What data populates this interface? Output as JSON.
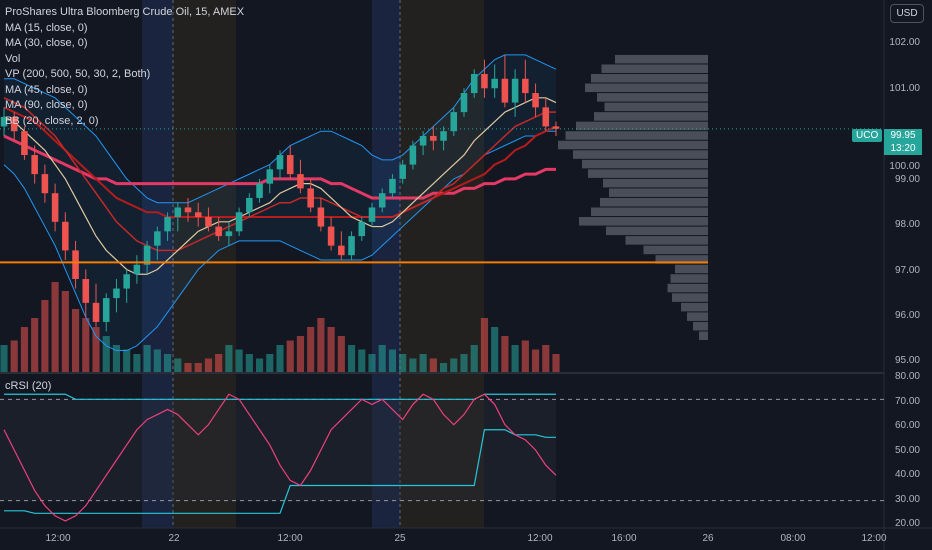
{
  "legend": {
    "title": "ProShares Ultra Bloomberg Crude Oil, 15, AMEX",
    "indicators": [
      "MA (15, close, 0)",
      "MA (30, close, 0)",
      "Vol",
      "VP (200, 500, 50, 30, 2, Both)",
      "MA (45, close, 0)",
      "MA (90, close, 0)",
      "BB (20, close, 2, 0)"
    ]
  },
  "rsi_legend": "cRSI (20)",
  "currency": "USD",
  "price_tag": {
    "symbol": "UCO",
    "price": "99.95",
    "countdown": "13:20"
  },
  "price_axis": [
    "102.00",
    "101.00",
    "100.00",
    "99.00",
    "98.00",
    "97.00",
    "96.00",
    "95.00"
  ],
  "rsi_axis": [
    "80.00",
    "70.00",
    "60.00",
    "50.00",
    "40.00",
    "30.00",
    "20.00"
  ],
  "time_axis": [
    "12:00",
    "22",
    "12:00",
    "25",
    "12:00",
    "16:00",
    "26",
    "08:00",
    "12:00"
  ],
  "colors": {
    "up": "#26a69a",
    "down": "#ef5350",
    "ma15": "#e0c9a0",
    "ma30": "#c62828",
    "ma45": "#b71c1c",
    "ma90": "#e53965",
    "bb": "#2196f3",
    "vp": "#787b86",
    "hline": "#f57c00",
    "rsi": "#ec407a",
    "rsi_band": "#26c6da"
  },
  "chart_data": {
    "type": "candlestick",
    "ylim": [
      94.85,
      102.4
    ],
    "rsi_ylim": [
      20,
      80
    ],
    "rsi_levels": [
      30,
      70
    ],
    "horizontal_line": 97.15,
    "last_price": 99.95,
    "candles": [
      [
        100.0,
        100.4,
        99.8,
        100.2
      ],
      [
        100.2,
        100.3,
        99.7,
        99.9
      ],
      [
        99.9,
        100.0,
        99.3,
        99.4
      ],
      [
        99.4,
        99.6,
        98.8,
        99.0
      ],
      [
        99.0,
        99.2,
        98.4,
        98.6
      ],
      [
        98.6,
        98.8,
        97.8,
        98.0
      ],
      [
        98.0,
        98.2,
        97.2,
        97.4
      ],
      [
        97.4,
        97.6,
        96.6,
        96.8
      ],
      [
        96.8,
        97.0,
        96.0,
        96.3
      ],
      [
        96.3,
        96.7,
        95.8,
        95.9
      ],
      [
        95.9,
        96.5,
        95.7,
        96.4
      ],
      [
        96.4,
        96.8,
        96.1,
        96.6
      ],
      [
        96.6,
        97.0,
        96.3,
        96.9
      ],
      [
        96.9,
        97.3,
        96.7,
        97.1
      ],
      [
        97.1,
        97.6,
        96.9,
        97.5
      ],
      [
        97.5,
        97.9,
        97.2,
        97.8
      ],
      [
        97.8,
        98.2,
        97.6,
        98.1
      ],
      [
        98.1,
        98.4,
        97.8,
        98.3
      ],
      [
        98.3,
        98.5,
        98.0,
        98.2
      ],
      [
        98.2,
        98.4,
        97.9,
        98.1
      ],
      [
        98.1,
        98.3,
        97.8,
        97.9
      ],
      [
        97.9,
        98.1,
        97.6,
        97.7
      ],
      [
        97.7,
        98.0,
        97.5,
        97.8
      ],
      [
        97.8,
        98.3,
        97.7,
        98.2
      ],
      [
        98.2,
        98.6,
        98.1,
        98.5
      ],
      [
        98.5,
        98.9,
        98.4,
        98.8
      ],
      [
        98.8,
        99.2,
        98.6,
        99.1
      ],
      [
        99.1,
        99.5,
        98.9,
        99.4
      ],
      [
        99.4,
        99.6,
        98.9,
        99.0
      ],
      [
        99.0,
        99.3,
        98.6,
        98.7
      ],
      [
        98.7,
        98.9,
        98.2,
        98.3
      ],
      [
        98.3,
        98.5,
        97.8,
        97.9
      ],
      [
        97.9,
        98.1,
        97.4,
        97.5
      ],
      [
        97.5,
        97.8,
        97.2,
        97.3
      ],
      [
        97.3,
        97.8,
        97.2,
        97.7
      ],
      [
        97.7,
        98.1,
        97.6,
        98.0
      ],
      [
        98.0,
        98.4,
        97.9,
        98.3
      ],
      [
        98.3,
        98.7,
        98.2,
        98.6
      ],
      [
        98.6,
        99.0,
        98.5,
        98.9
      ],
      [
        98.9,
        99.3,
        98.8,
        99.2
      ],
      [
        99.2,
        99.7,
        99.1,
        99.6
      ],
      [
        99.6,
        99.9,
        99.4,
        99.8
      ],
      [
        99.8,
        100.0,
        99.5,
        99.7
      ],
      [
        99.7,
        100.0,
        99.5,
        99.9
      ],
      [
        99.9,
        100.4,
        99.8,
        100.3
      ],
      [
        100.3,
        100.8,
        100.2,
        100.7
      ],
      [
        100.7,
        101.2,
        100.6,
        101.1
      ],
      [
        101.1,
        101.4,
        100.6,
        100.8
      ],
      [
        100.8,
        101.3,
        100.6,
        101.0
      ],
      [
        101.0,
        101.5,
        100.4,
        100.5
      ],
      [
        100.5,
        101.2,
        100.2,
        101.0
      ],
      [
        101.0,
        101.4,
        100.5,
        100.7
      ],
      [
        100.7,
        100.9,
        100.2,
        100.4
      ],
      [
        100.4,
        100.6,
        99.9,
        100.0
      ],
      [
        100.0,
        100.1,
        99.8,
        99.95
      ]
    ],
    "volume": [
      0.3,
      0.35,
      0.5,
      0.6,
      0.8,
      1.0,
      0.9,
      0.7,
      0.6,
      0.5,
      0.4,
      0.3,
      0.25,
      0.2,
      0.3,
      0.25,
      0.2,
      0.15,
      0.1,
      0.1,
      0.15,
      0.2,
      0.3,
      0.25,
      0.2,
      0.15,
      0.2,
      0.3,
      0.35,
      0.4,
      0.5,
      0.6,
      0.5,
      0.4,
      0.3,
      0.25,
      0.2,
      0.3,
      0.25,
      0.2,
      0.15,
      0.2,
      0.15,
      0.1,
      0.15,
      0.2,
      0.3,
      0.6,
      0.5,
      0.4,
      0.3,
      0.35,
      0.25,
      0.3,
      0.2
    ],
    "ma15": [
      100.2,
      100.1,
      99.9,
      99.7,
      99.5,
      99.2,
      98.9,
      98.5,
      98.1,
      97.7,
      97.4,
      97.2,
      97.0,
      96.9,
      96.9,
      97.0,
      97.2,
      97.4,
      97.6,
      97.8,
      97.9,
      98.0,
      98.0,
      98.1,
      98.2,
      98.3,
      98.4,
      98.6,
      98.7,
      98.8,
      98.8,
      98.7,
      98.5,
      98.3,
      98.1,
      98.0,
      97.9,
      97.9,
      98.0,
      98.2,
      98.4,
      98.6,
      98.8,
      99.0,
      99.2,
      99.4,
      99.7,
      99.9,
      100.1,
      100.3,
      100.4,
      100.5,
      100.6,
      100.6,
      100.5
    ],
    "ma30": [
      100.6,
      100.5,
      100.4,
      100.2,
      100.0,
      99.8,
      99.5,
      99.2,
      98.9,
      98.6,
      98.3,
      98.0,
      97.8,
      97.6,
      97.5,
      97.4,
      97.4,
      97.4,
      97.5,
      97.6,
      97.7,
      97.8,
      97.9,
      98.0,
      98.1,
      98.2,
      98.3,
      98.4,
      98.4,
      98.5,
      98.5,
      98.5,
      98.4,
      98.3,
      98.2,
      98.1,
      98.1,
      98.1,
      98.1,
      98.2,
      98.3,
      98.4,
      98.5,
      98.7,
      98.8,
      99.0,
      99.2,
      99.4,
      99.6,
      99.8,
      100.0,
      100.1,
      100.2,
      100.3,
      100.3
    ],
    "ma45": [
      100.4,
      100.3,
      100.2,
      100.1,
      99.9,
      99.7,
      99.5,
      99.3,
      99.1,
      98.9,
      98.7,
      98.5,
      98.4,
      98.3,
      98.2,
      98.2,
      98.1,
      98.1,
      98.1,
      98.1,
      98.1,
      98.1,
      98.1,
      98.1,
      98.1,
      98.1,
      98.1,
      98.1,
      98.1,
      98.1,
      98.1,
      98.1,
      98.1,
      98.1,
      98.1,
      98.1,
      98.1,
      98.1,
      98.1,
      98.2,
      98.3,
      98.4,
      98.5,
      98.6,
      98.7,
      98.8,
      98.9,
      99.0,
      99.2,
      99.3,
      99.5,
      99.6,
      99.8,
      99.9,
      100.0
    ],
    "ma90": [
      99.8,
      99.7,
      99.6,
      99.5,
      99.4,
      99.3,
      99.2,
      99.1,
      99.0,
      98.9,
      98.9,
      98.8,
      98.8,
      98.8,
      98.8,
      98.8,
      98.8,
      98.8,
      98.8,
      98.8,
      98.8,
      98.8,
      98.8,
      98.8,
      98.8,
      98.8,
      98.9,
      98.9,
      98.9,
      98.9,
      98.9,
      98.9,
      98.8,
      98.8,
      98.7,
      98.6,
      98.5,
      98.5,
      98.5,
      98.5,
      98.5,
      98.5,
      98.6,
      98.6,
      98.6,
      98.7,
      98.7,
      98.8,
      98.8,
      98.9,
      98.9,
      99.0,
      99.0,
      99.1,
      99.1
    ],
    "bb_upper": [
      101.0,
      101.0,
      100.9,
      100.8,
      100.7,
      100.6,
      100.4,
      100.2,
      100.0,
      99.8,
      99.5,
      99.2,
      98.9,
      98.7,
      98.5,
      98.4,
      98.4,
      98.4,
      98.4,
      98.5,
      98.6,
      98.7,
      98.8,
      98.9,
      99.0,
      99.1,
      99.2,
      99.4,
      99.6,
      99.7,
      99.8,
      99.9,
      99.9,
      99.8,
      99.7,
      99.6,
      99.4,
      99.3,
      99.3,
      99.4,
      99.6,
      99.8,
      100.0,
      100.2,
      100.4,
      100.7,
      101.0,
      101.2,
      101.4,
      101.5,
      101.5,
      101.5,
      101.4,
      101.3,
      101.2
    ],
    "bb_lower": [
      99.2,
      99.0,
      98.7,
      98.3,
      97.9,
      97.5,
      97.0,
      96.5,
      96.0,
      95.6,
      95.4,
      95.3,
      95.3,
      95.4,
      95.6,
      95.8,
      96.1,
      96.4,
      96.7,
      97.0,
      97.2,
      97.4,
      97.5,
      97.6,
      97.6,
      97.6,
      97.6,
      97.6,
      97.5,
      97.4,
      97.3,
      97.2,
      97.2,
      97.2,
      97.2,
      97.2,
      97.3,
      97.5,
      97.7,
      97.9,
      98.1,
      98.3,
      98.5,
      98.7,
      98.9,
      99.0,
      99.2,
      99.4,
      99.5,
      99.6,
      99.7,
      99.8,
      99.8,
      99.9,
      99.9
    ],
    "volume_profile": [
      [
        101.4,
        0.62
      ],
      [
        101.2,
        0.71
      ],
      [
        101.0,
        0.78
      ],
      [
        100.8,
        0.82
      ],
      [
        100.6,
        0.74
      ],
      [
        100.4,
        0.69
      ],
      [
        100.2,
        0.76
      ],
      [
        100.0,
        0.88
      ],
      [
        99.8,
        0.95
      ],
      [
        99.6,
        1.0
      ],
      [
        99.4,
        0.9
      ],
      [
        99.2,
        0.84
      ],
      [
        99.0,
        0.8
      ],
      [
        98.8,
        0.7
      ],
      [
        98.6,
        0.66
      ],
      [
        98.4,
        0.72
      ],
      [
        98.2,
        0.78
      ],
      [
        98.0,
        0.86
      ],
      [
        97.8,
        0.68
      ],
      [
        97.6,
        0.55
      ],
      [
        97.4,
        0.43
      ],
      [
        97.2,
        0.35
      ],
      [
        97.0,
        0.22
      ],
      [
        96.8,
        0.25
      ],
      [
        96.6,
        0.27
      ],
      [
        96.4,
        0.24
      ],
      [
        96.2,
        0.18
      ],
      [
        96.0,
        0.14
      ],
      [
        95.8,
        0.1
      ],
      [
        95.6,
        0.06
      ]
    ],
    "crsi": [
      58,
      50,
      42,
      34,
      28,
      24,
      22,
      24,
      28,
      34,
      40,
      46,
      52,
      58,
      62,
      64,
      66,
      64,
      60,
      56,
      60,
      66,
      72,
      70,
      64,
      58,
      52,
      44,
      38,
      36,
      42,
      50,
      58,
      62,
      66,
      70,
      68,
      70,
      66,
      62,
      68,
      72,
      70,
      64,
      60,
      64,
      70,
      72,
      68,
      60,
      56,
      54,
      50,
      44,
      40
    ],
    "crsi_upper": [
      72,
      72,
      72,
      72,
      72,
      72,
      72,
      70,
      70,
      70,
      70,
      70,
      70,
      70,
      70,
      70,
      70,
      70,
      70,
      70,
      70,
      70,
      70,
      70,
      70,
      70,
      70,
      70,
      70,
      70,
      70,
      70,
      70,
      70,
      70,
      70,
      70,
      70,
      70,
      70,
      70,
      70,
      70,
      70,
      70,
      70,
      70,
      72,
      72,
      72,
      72,
      72,
      72,
      72,
      72
    ],
    "crsi_lower": [
      26,
      26,
      26,
      25,
      25,
      25,
      25,
      25,
      25,
      25,
      25,
      25,
      25,
      25,
      25,
      25,
      25,
      25,
      25,
      25,
      25,
      25,
      25,
      25,
      25,
      25,
      25,
      25,
      36,
      36,
      36,
      36,
      36,
      36,
      36,
      36,
      36,
      36,
      36,
      36,
      36,
      36,
      36,
      36,
      36,
      36,
      36,
      58,
      58,
      58,
      56,
      56,
      56,
      55,
      55
    ]
  }
}
